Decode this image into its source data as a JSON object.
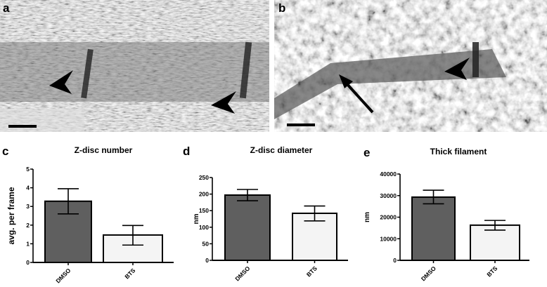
{
  "panels": {
    "a": "a",
    "b": "b",
    "c": "c",
    "d": "d",
    "e": "e"
  },
  "colors": {
    "dmso": "#5f5f5f",
    "bts": "#f4f4f4",
    "axis": "#000000"
  },
  "chart_data": [
    {
      "type": "bar",
      "title": "Z-disc number",
      "ylabel": "avg. per frame",
      "categories": [
        "DMSO",
        "BTS"
      ],
      "values": [
        3.28,
        1.47
      ],
      "error_low": [
        2.6,
        0.93
      ],
      "error_high": [
        3.95,
        1.98
      ],
      "ylim": [
        0,
        5
      ],
      "yticks": [
        "0",
        "1",
        "2",
        "3",
        "4",
        "5"
      ],
      "grid": false
    },
    {
      "type": "bar",
      "title": "Z-disc diameter",
      "ylabel": "nm",
      "categories": [
        "DMSO",
        "BTS"
      ],
      "values": [
        197,
        142
      ],
      "error_low": [
        180,
        119
      ],
      "error_high": [
        214,
        164
      ],
      "ylim": [
        0,
        250
      ],
      "yticks": [
        "0",
        "50",
        "100",
        "150",
        "200",
        "250"
      ],
      "grid": false
    },
    {
      "type": "bar",
      "title": "Thick filament",
      "ylabel": "nm",
      "categories": [
        "DMSO",
        "BTS"
      ],
      "values": [
        29300,
        16300
      ],
      "error_low": [
        26200,
        14000
      ],
      "error_high": [
        32500,
        18500
      ],
      "ylim": [
        0,
        40000
      ],
      "yticks": [
        "0",
        "10000",
        "20000",
        "30000",
        "40000"
      ],
      "grid": false
    }
  ]
}
